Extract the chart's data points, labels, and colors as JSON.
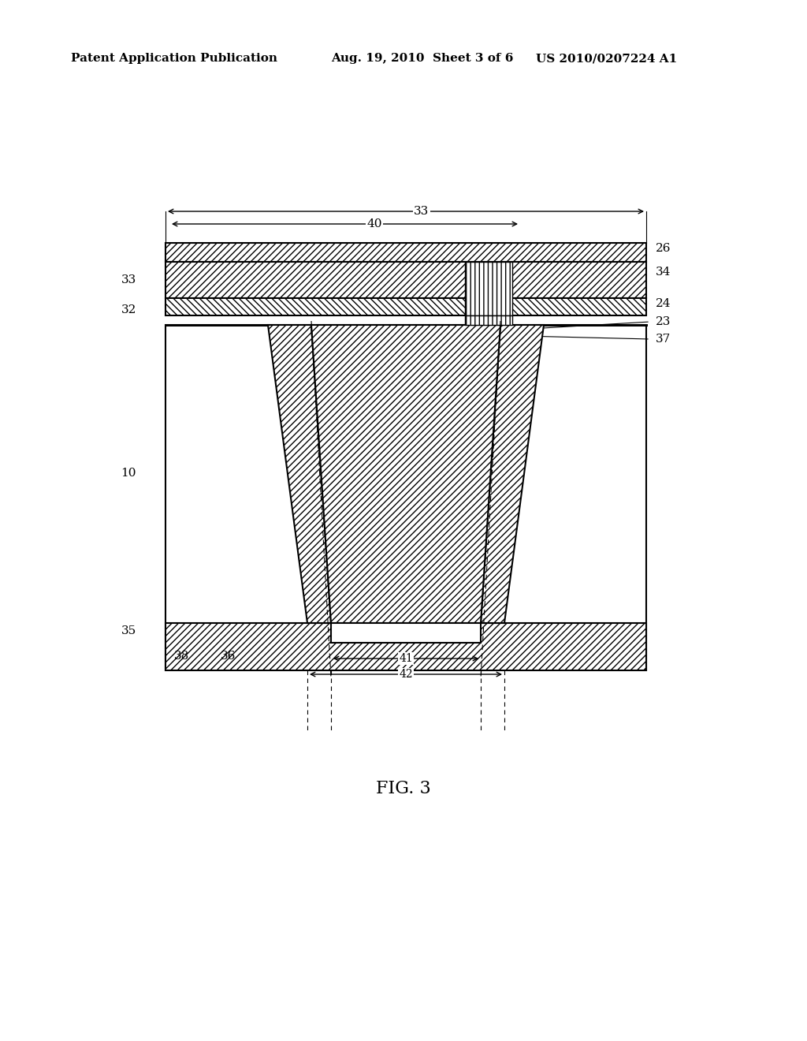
{
  "header_left": "Patent Application Publication",
  "header_mid": "Aug. 19, 2010  Sheet 3 of 6",
  "header_right": "US 2010/0207224 A1",
  "caption": "FIG. 3",
  "bg_color": "#ffffff",
  "line_color": "#000000",
  "hatch_color": "#000000"
}
